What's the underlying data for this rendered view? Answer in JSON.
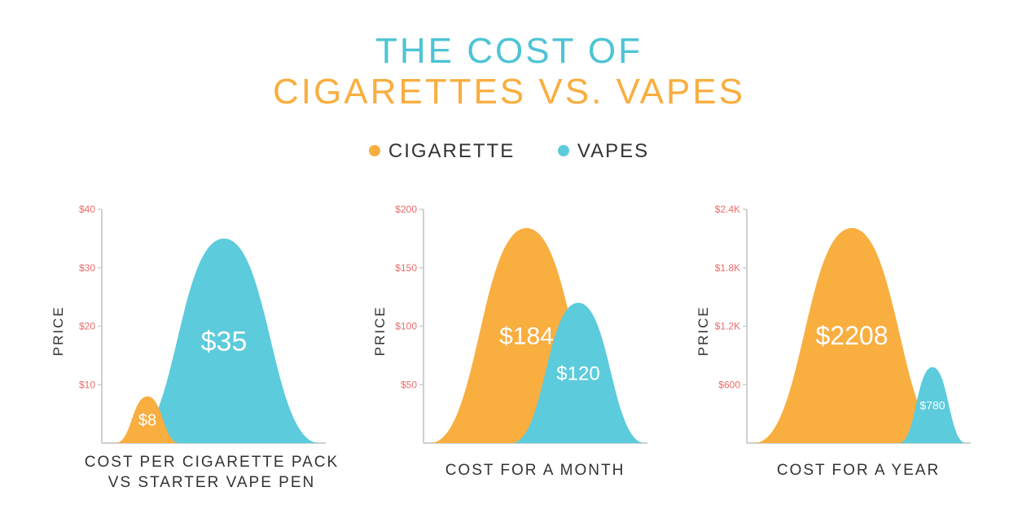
{
  "title": {
    "line1": "THE COST OF",
    "line2": "CIGARETTES VS. VAPES"
  },
  "legend": [
    {
      "name": "CIGARETTE",
      "color": "#f9ae40"
    },
    {
      "name": "VAPES",
      "color": "#5ccbdc"
    }
  ],
  "chart_data": [
    {
      "type": "area",
      "xlabel": [
        "COST PER CIGARETTE PACK",
        "VS STARTER VAPE PEN"
      ],
      "ylabel": "PRICE",
      "ylim": [
        0,
        40
      ],
      "ticks": [
        {
          "v": 10,
          "label": "$10"
        },
        {
          "v": 20,
          "label": "$20"
        },
        {
          "v": 30,
          "label": "$30"
        },
        {
          "v": 40,
          "label": "$40"
        }
      ],
      "series": [
        {
          "name": "VAPES",
          "value": 35,
          "label": "$35"
        },
        {
          "name": "CIGARETTE",
          "value": 8,
          "label": "$8"
        }
      ]
    },
    {
      "type": "area",
      "xlabel": [
        "COST FOR A MONTH"
      ],
      "ylabel": "PRICE",
      "ylim": [
        0,
        200
      ],
      "ticks": [
        {
          "v": 50,
          "label": "$50"
        },
        {
          "v": 100,
          "label": "$100"
        },
        {
          "v": 150,
          "label": "$150"
        },
        {
          "v": 200,
          "label": "$200"
        }
      ],
      "series": [
        {
          "name": "CIGARETTE",
          "value": 184,
          "label": "$184"
        },
        {
          "name": "VAPES",
          "value": 120,
          "label": "$120"
        }
      ]
    },
    {
      "type": "area",
      "xlabel": [
        "COST FOR A YEAR"
      ],
      "ylabel": "PRICE",
      "ylim": [
        0,
        2400
      ],
      "ticks": [
        {
          "v": 600,
          "label": "$600"
        },
        {
          "v": 1200,
          "label": "$1.2K"
        },
        {
          "v": 1800,
          "label": "$1.8K"
        },
        {
          "v": 2400,
          "label": "$2.4K"
        }
      ],
      "series": [
        {
          "name": "CIGARETTE",
          "value": 2208,
          "label": "$2208"
        },
        {
          "name": "VAPES",
          "value": 780,
          "label": "$780"
        }
      ]
    }
  ]
}
